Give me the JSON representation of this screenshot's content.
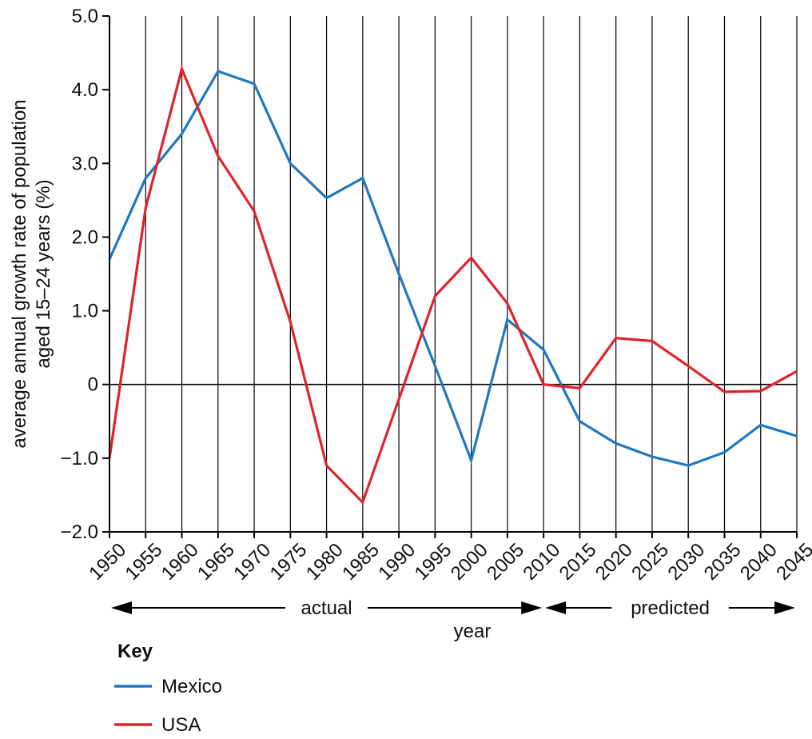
{
  "chart_data": {
    "type": "line",
    "title": "",
    "xlabel": "year",
    "ylabel_line1": "average annual growth rate of population",
    "ylabel_line2": "aged 15–24 years (%)",
    "x": [
      1950,
      1955,
      1960,
      1965,
      1970,
      1975,
      1980,
      1985,
      1990,
      1995,
      2000,
      2005,
      2010,
      2015,
      2020,
      2025,
      2030,
      2035,
      2040,
      2045
    ],
    "x_tick_labels": [
      "1950",
      "1955",
      "1960",
      "1965",
      "1970",
      "1975",
      "1980",
      "1985",
      "1990",
      "1995",
      "2000",
      "2005",
      "2010",
      "2015",
      "2020",
      "2025",
      "2030",
      "2035",
      "2040",
      "2045"
    ],
    "xlim": [
      1950,
      2045
    ],
    "ylim": [
      -2.0,
      5.0
    ],
    "y_ticks": [
      -2.0,
      -1.0,
      0,
      1.0,
      2.0,
      3.0,
      4.0,
      5.0
    ],
    "y_tick_labels": [
      "−2.0",
      "−1.0",
      "0",
      "1.0",
      "2.0",
      "3.0",
      "4.0",
      "5.0"
    ],
    "grid": "vertical",
    "series": [
      {
        "name": "Mexico",
        "color": "#1f78c1",
        "values": [
          1.7,
          2.8,
          3.4,
          4.25,
          4.08,
          3.0,
          2.53,
          2.8,
          1.5,
          0.25,
          -1.03,
          0.88,
          0.47,
          -0.5,
          -0.8,
          -0.98,
          -1.1,
          -0.92,
          -0.55,
          -0.7
        ]
      },
      {
        "name": "USA",
        "color": "#e0232a",
        "values": [
          -1.0,
          2.4,
          4.28,
          3.1,
          2.35,
          0.85,
          -1.1,
          -1.6,
          -0.2,
          1.2,
          1.72,
          1.1,
          0.0,
          -0.05,
          0.63,
          0.59,
          0.25,
          -0.1,
          -0.09,
          0.18
        ]
      }
    ],
    "ranges": [
      {
        "label": "actual",
        "from": 1950,
        "to": 2010
      },
      {
        "label": "predicted",
        "from": 2010,
        "to": 2045
      }
    ],
    "legend": {
      "title": "Key",
      "placement": "bottom-left"
    }
  }
}
